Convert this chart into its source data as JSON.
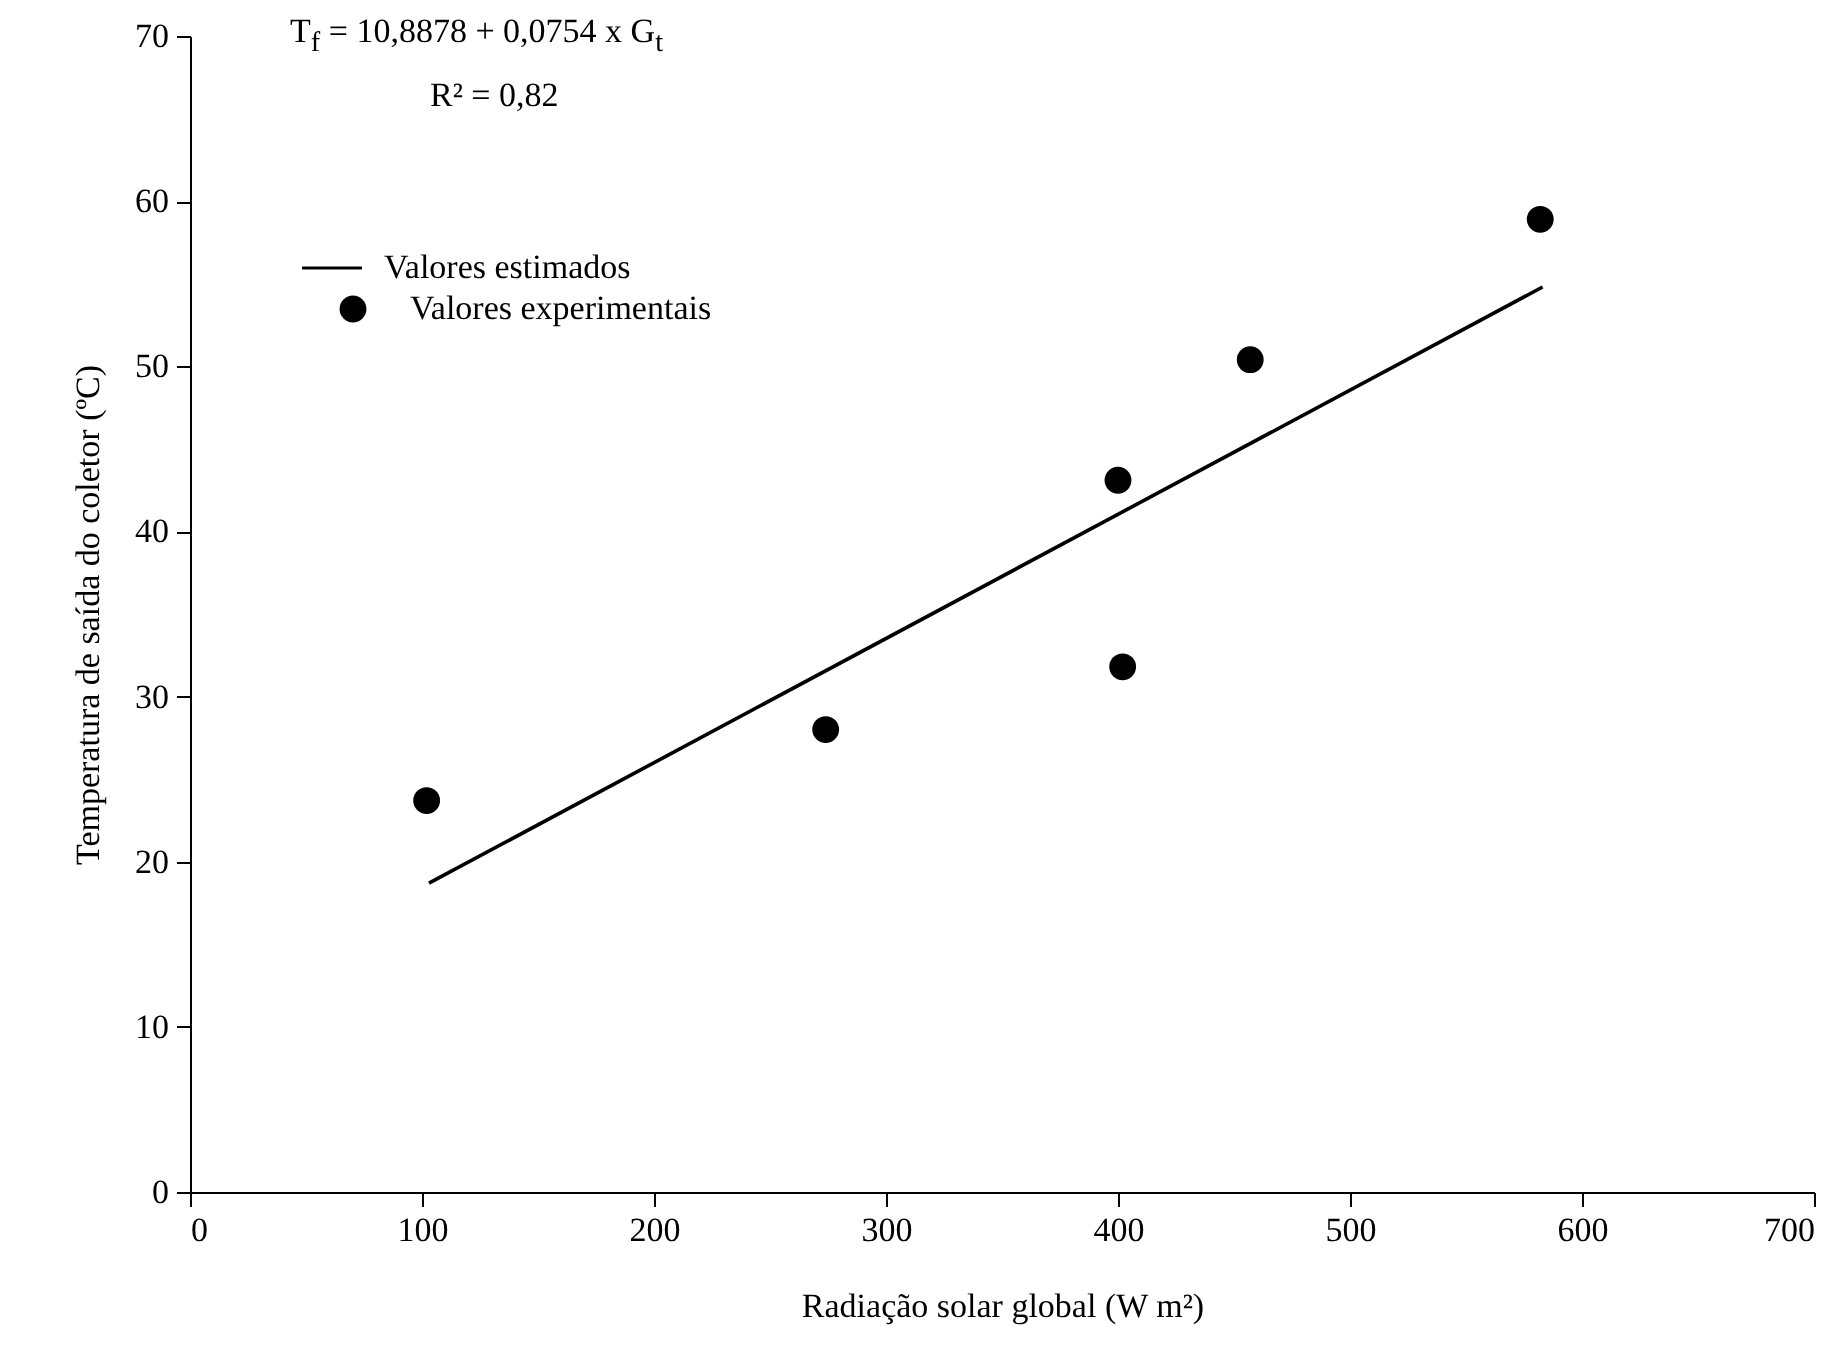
{
  "chart_data": {
    "type": "scatter",
    "xlabel": "Radiação solar  global (W m²)",
    "ylabel": "Temperatura de saída do coletor (ºC)",
    "annotations": [
      "T$_{f}$ = 10,8878 + 0,0754 x G$_{t}$",
      "R² = 0,82"
    ],
    "xlim": [
      0,
      700
    ],
    "xticks": [
      0,
      100,
      200,
      300,
      400,
      500,
      600,
      700
    ],
    "ylim": [
      0,
      70
    ],
    "yticks": [
      0,
      10,
      20,
      30,
      40,
      50,
      60,
      70
    ],
    "legend": "top left",
    "series": [
      {
        "name": "Valores estimados",
        "type": "line",
        "color": "#000000",
        "line_style": "solid",
        "x": [
          103,
          583
        ],
        "values": [
          18.7,
          54.8
        ]
      },
      {
        "name": "Valores experimentais",
        "color": "#000000",
        "marker": "circle",
        "x": [
          102,
          274,
          400,
          402,
          457,
          582
        ],
        "values": [
          23.7,
          28.0,
          43.1,
          31.8,
          50.4,
          58.9
        ]
      }
    ]
  }
}
